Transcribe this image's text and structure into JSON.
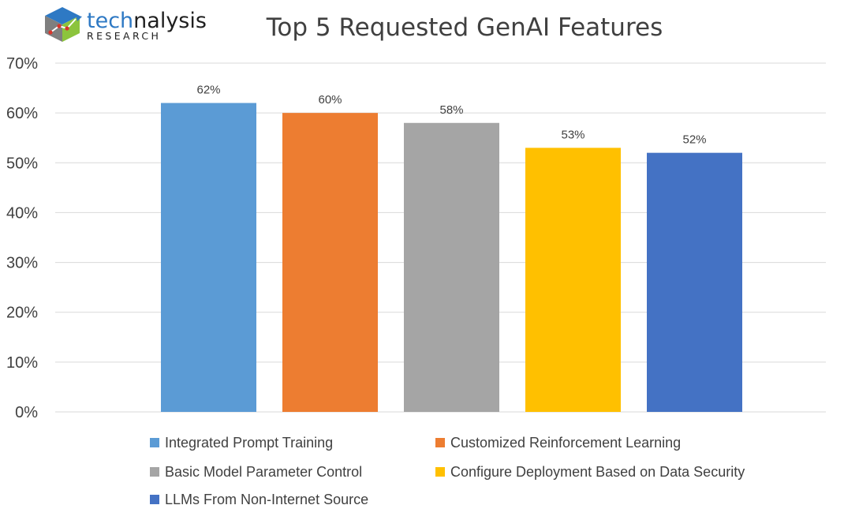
{
  "logo": {
    "name_prefix": "tech",
    "name_suffix": "nalysis",
    "subtitle": "RESEARCH"
  },
  "chart_data": {
    "type": "bar",
    "title": "Top 5 Requested GenAI Features",
    "xlabel": "",
    "ylabel": "",
    "ylim": [
      0,
      70
    ],
    "yticks": [
      "0%",
      "10%",
      "20%",
      "30%",
      "40%",
      "50%",
      "60%",
      "70%"
    ],
    "grid": true,
    "legend_position": "bottom",
    "categories": [
      "Integrated Prompt Training",
      "Customized Reinforcement Learning",
      "Basic Model Parameter Control",
      "Configure Deployment Based on Data Security",
      "LLMs From Non-Internet Source"
    ],
    "values": [
      62,
      60,
      58,
      53,
      52
    ],
    "data_labels": [
      "62%",
      "60%",
      "58%",
      "53%",
      "52%"
    ],
    "colors": [
      "#5b9bd5",
      "#ed7d31",
      "#a5a5a5",
      "#ffc000",
      "#4472c4"
    ]
  }
}
